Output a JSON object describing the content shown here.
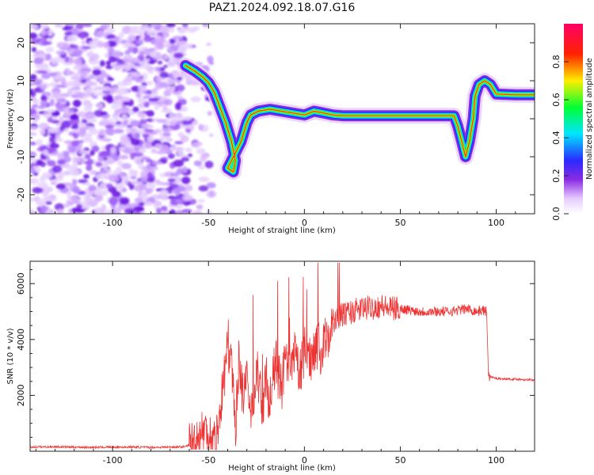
{
  "figure": {
    "title": "PAZ1.2024.092.18.07.G16"
  },
  "chart_data": [
    {
      "type": "heatmap",
      "xlabel": "Height of straight line (km)",
      "ylabel": "Frequency (Hz)",
      "xlim": [
        -143,
        120
      ],
      "ylim": [
        -25,
        25
      ],
      "xticks": [
        -100,
        -50,
        0,
        50,
        100
      ],
      "yticks": [
        -20,
        -10,
        0,
        10,
        20
      ],
      "noise_region": [
        -143,
        -60
      ],
      "ridge": [
        [
          -62,
          14
        ],
        [
          -57,
          12.5
        ],
        [
          -53,
          11
        ],
        [
          -50,
          9.5
        ],
        [
          -47,
          7
        ],
        [
          -44,
          3
        ],
        [
          -41,
          -1
        ],
        [
          -38,
          -6
        ],
        [
          -36,
          -11
        ],
        [
          -37,
          -14
        ],
        [
          -40,
          -13
        ],
        [
          -33,
          -6
        ],
        [
          -30,
          -1
        ],
        [
          -28,
          1
        ],
        [
          -24,
          2
        ],
        [
          -18,
          2.5
        ],
        [
          -12,
          2
        ],
        [
          -6,
          1.5
        ],
        [
          0,
          1
        ],
        [
          5,
          2
        ],
        [
          10,
          1.5
        ],
        [
          15,
          1
        ],
        [
          20,
          0.8
        ],
        [
          30,
          0.8
        ],
        [
          40,
          0.8
        ],
        [
          50,
          0.8
        ],
        [
          60,
          0.8
        ],
        [
          70,
          0.8
        ],
        [
          78,
          0.8
        ],
        [
          80,
          -2
        ],
        [
          82,
          -6
        ],
        [
          84,
          -10
        ],
        [
          86,
          -6
        ],
        [
          88,
          0
        ],
        [
          89,
          6
        ],
        [
          91,
          9
        ],
        [
          94,
          10
        ],
        [
          97,
          9
        ],
        [
          100,
          6.5
        ],
        [
          110,
          6.3
        ],
        [
          120,
          6.3
        ]
      ],
      "colorbar": {
        "label": "Normalized spectral amplitude",
        "ticks": [
          "0.0",
          "0.2",
          "0.4",
          "0.6",
          "0.8"
        ],
        "range": [
          0,
          1
        ]
      }
    },
    {
      "type": "line",
      "xlabel": "Height of straight line (km)",
      "ylabel": "SNR (10 * v/v)",
      "xlim": [
        -143,
        120
      ],
      "ylim": [
        0,
        6800
      ],
      "xticks": [
        -100,
        -50,
        0,
        50,
        100
      ],
      "yticks": [
        2000,
        4000,
        6000
      ],
      "color": "#ee3333",
      "series": [
        {
          "x": [
            -143,
            -130,
            -120,
            -110,
            -100,
            -90,
            -80,
            -70,
            -62,
            -58,
            -55,
            -52,
            -50,
            -46,
            -42,
            -40,
            -38,
            -36,
            -34,
            -32,
            -30,
            -28,
            -25,
            -22,
            -20,
            -18,
            -15,
            -12,
            -10,
            -8,
            -5,
            -2,
            0,
            3,
            6,
            9,
            12,
            15,
            18,
            20,
            25,
            30,
            35,
            40,
            45,
            50,
            55,
            60,
            65,
            70,
            75,
            80,
            85,
            90,
            93,
            95,
            96,
            97,
            98,
            100,
            110,
            120
          ],
          "y": [
            150,
            160,
            150,
            140,
            150,
            150,
            140,
            150,
            160,
            300,
            500,
            800,
            600,
            400,
            2500,
            4000,
            3000,
            800,
            3500,
            1800,
            2500,
            1200,
            3000,
            1500,
            2600,
            1800,
            3200,
            2200,
            3300,
            2600,
            3400,
            2800,
            3600,
            3300,
            3900,
            3500,
            4200,
            4500,
            4800,
            4900,
            5000,
            5100,
            5150,
            5200,
            5100,
            5100,
            5050,
            5000,
            5000,
            5000,
            5000,
            5050,
            5100,
            5000,
            5050,
            5000,
            2700,
            2650,
            2650,
            2600,
            2580,
            2550
          ]
        }
      ]
    }
  ]
}
